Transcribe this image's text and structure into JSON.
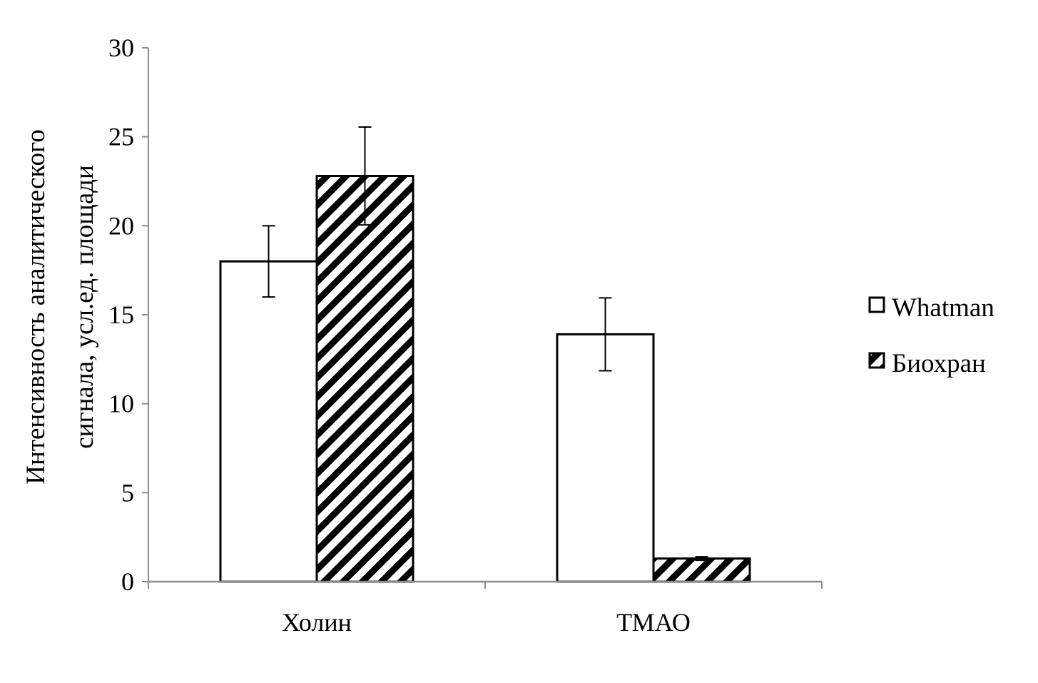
{
  "chart_data": {
    "type": "bar",
    "title": "",
    "xlabel": "",
    "ylabel_lines": [
      "Интенсивность аналитического",
      "сигнала, усл.ед. площади"
    ],
    "categories": [
      "Холин",
      "ТМАО"
    ],
    "ylim": [
      0,
      30
    ],
    "yticks": [
      "0",
      "5",
      "10",
      "15",
      "20",
      "25",
      "30"
    ],
    "grid": false,
    "legend_position": "right",
    "series": [
      {
        "name": "Whatman",
        "fill": "white",
        "values": [
          18.0,
          13.9
        ],
        "errors": [
          2.0,
          2.05
        ]
      },
      {
        "name": "Биохран",
        "fill": "diagonal-hatch",
        "values": [
          22.8,
          1.3
        ],
        "errors": [
          2.75,
          0.1
        ]
      }
    ]
  }
}
